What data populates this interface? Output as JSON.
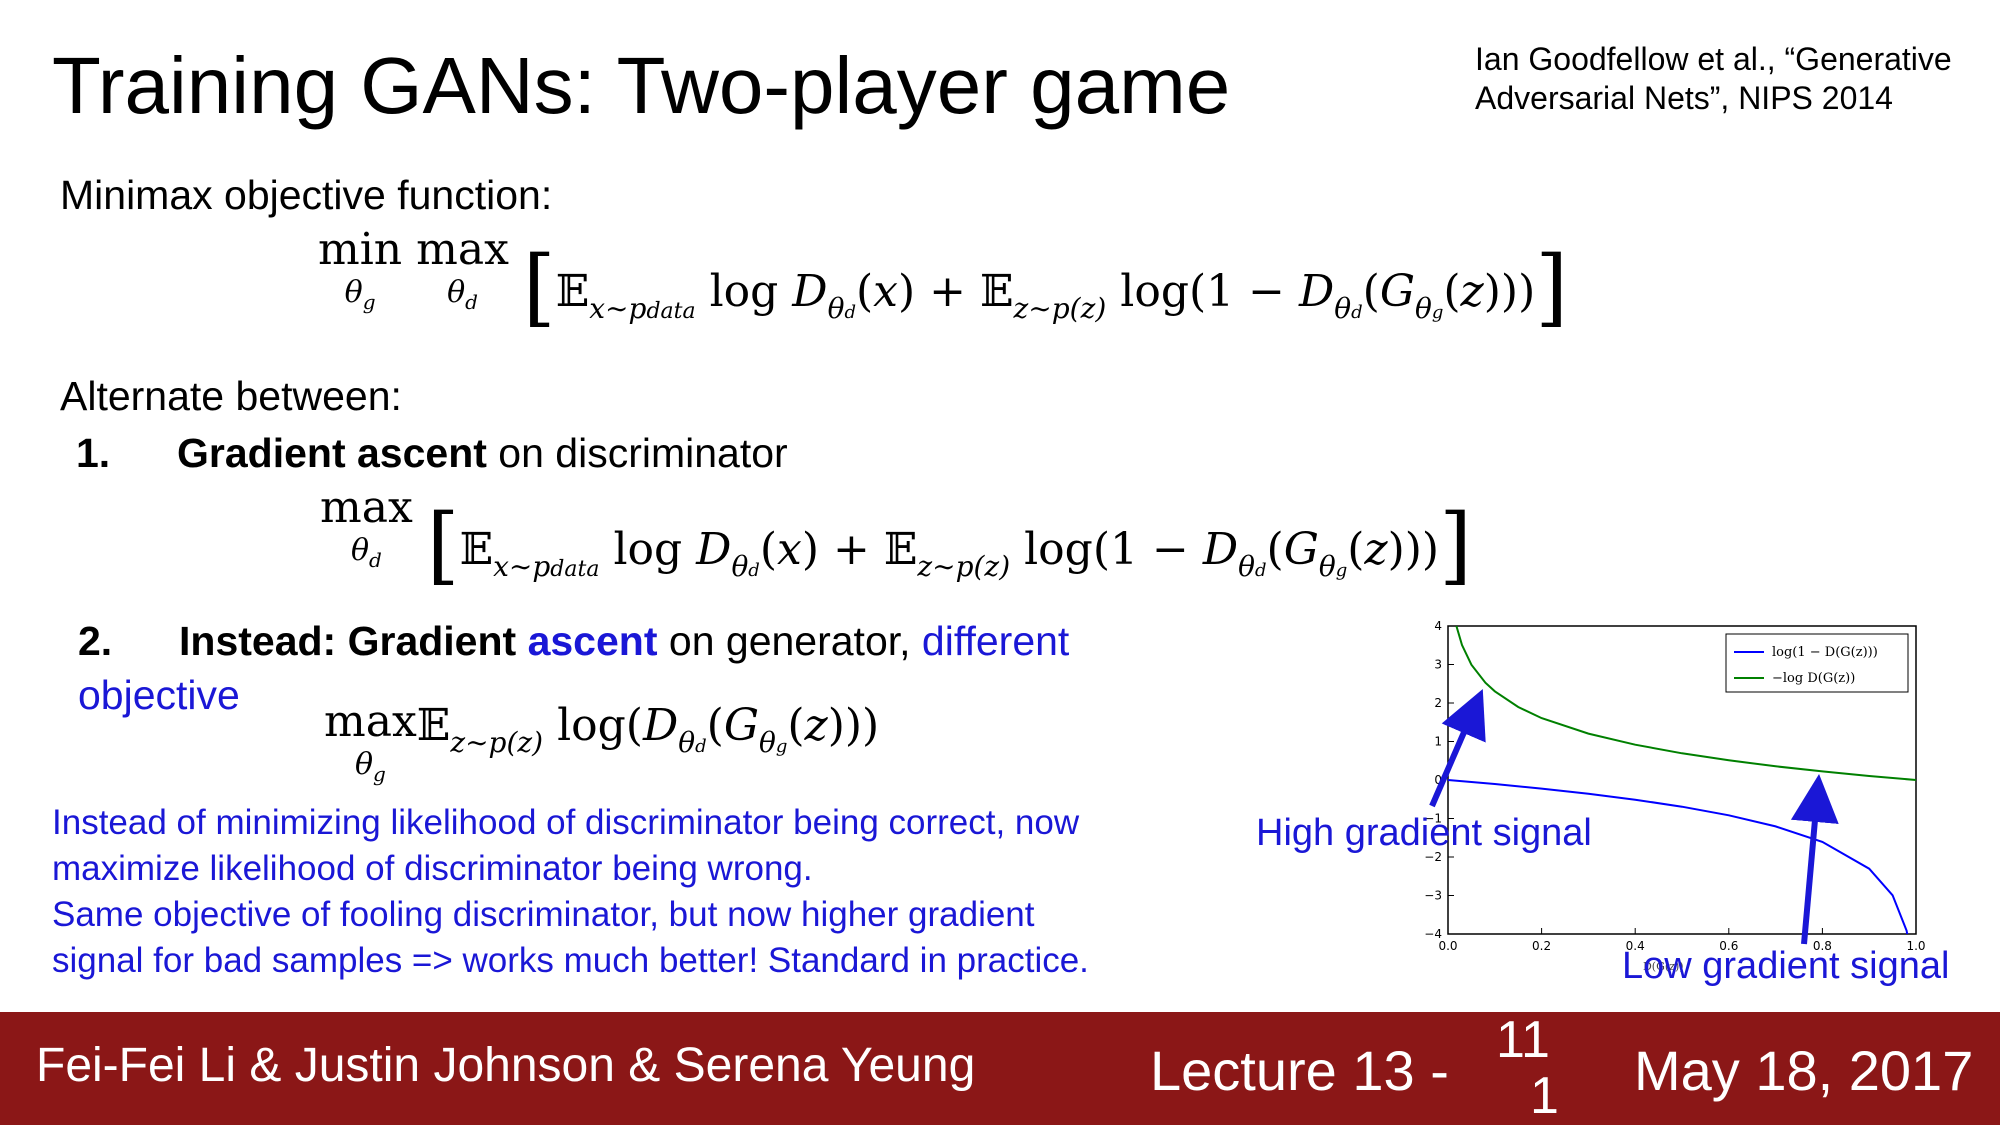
{
  "slide": {
    "title": "Training GANs: Two-player game",
    "citation_line1": "Ian Goodfellow et al., “Generative",
    "citation_line2": "Adversarial Nets”, NIPS 2014",
    "minimax_label": "Minimax objective function:",
    "alternate_label": "Alternate between:",
    "step1": {
      "num": "1.",
      "bold": "Gradient ascent",
      "rest": " on discriminator"
    },
    "step2": {
      "num": "2.",
      "bold1": "Instead: Gradient ",
      "blue_bold": "ascent",
      "rest": " on generator, ",
      "blue1": "different",
      "blue2": "objective"
    },
    "note_lines": [
      "Instead of minimizing likelihood of discriminator being correct, now",
      "maximize likelihood of discriminator being wrong.",
      "Same objective of fooling discriminator, but now higher gradient",
      "signal for bad samples => works much better! Standard in practice."
    ]
  },
  "chart_annotations": {
    "high": "High gradient signal",
    "low": "Low gradient signal",
    "arrow_color": "#1a17d6"
  },
  "chart_data": {
    "type": "line",
    "xlim": [
      0.0,
      1.0
    ],
    "ylim": [
      -4,
      4
    ],
    "xticks": [
      "0.0",
      "0.2",
      "0.4",
      "0.6",
      "0.8",
      "1.0"
    ],
    "yticks": [
      "4",
      "3",
      "2",
      "1",
      "0",
      "−1",
      "−2",
      "−3",
      "−4"
    ],
    "xlabel": "D(G(z))",
    "legend_placement": "top-right",
    "series": [
      {
        "name": "log(1 − D(G(z)))",
        "color": "#0000ff",
        "x": [
          0.0,
          0.1,
          0.2,
          0.3,
          0.4,
          0.5,
          0.6,
          0.7,
          0.8,
          0.9,
          0.95,
          0.98,
          0.99
        ],
        "y": [
          0.0,
          -0.105,
          -0.223,
          -0.357,
          -0.511,
          -0.693,
          -0.916,
          -1.204,
          -1.609,
          -2.303,
          -2.996,
          -3.912,
          -4.605
        ]
      },
      {
        "name": "−log D(G(z))",
        "color": "#008000",
        "x": [
          0.018,
          0.03,
          0.05,
          0.08,
          0.1,
          0.15,
          0.2,
          0.3,
          0.4,
          0.5,
          0.6,
          0.7,
          0.8,
          0.9,
          1.0
        ],
        "y": [
          4.0,
          3.507,
          2.996,
          2.526,
          2.303,
          1.897,
          1.609,
          1.204,
          0.916,
          0.693,
          0.511,
          0.357,
          0.223,
          0.105,
          0.0
        ]
      }
    ]
  },
  "footer": {
    "authors": "Fei-Fei Li & Justin Johnson & Serena Yeung",
    "lecture": "Lecture 13 -",
    "page_top": "11",
    "page_bottom": "1",
    "date": "May 18, 2017",
    "bg_color": "#8b1717"
  }
}
